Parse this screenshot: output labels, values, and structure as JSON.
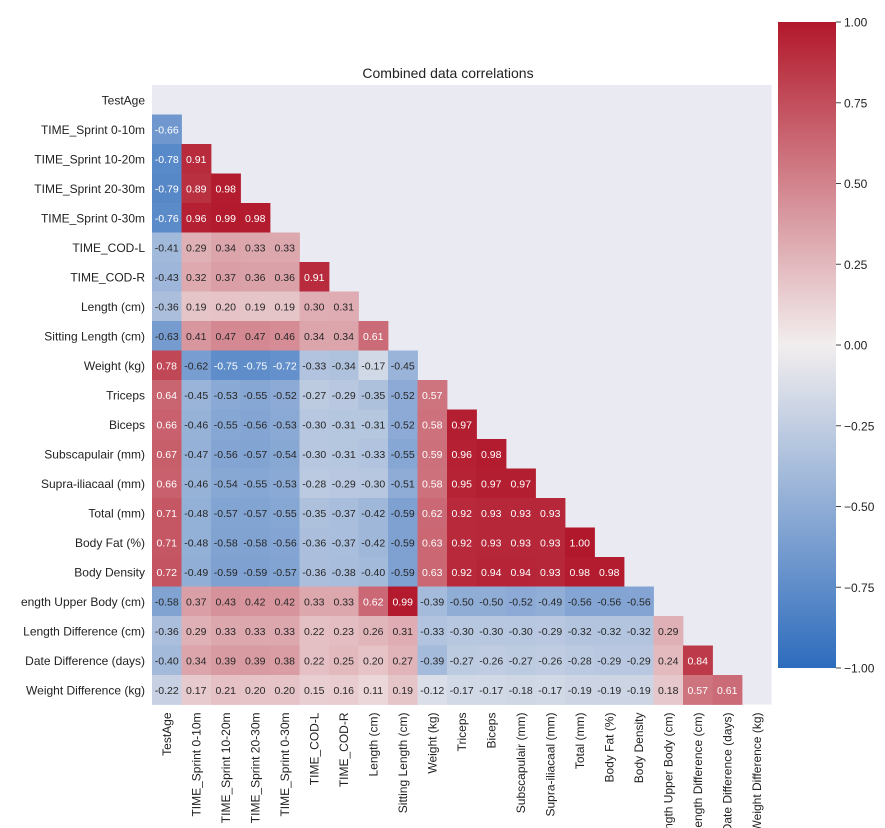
{
  "chart_data": {
    "type": "heatmap",
    "title": "Combined data correlations",
    "row_labels": [
      "TestAge",
      "TIME_Sprint 0-10m",
      "TIME_Sprint 10-20m",
      "TIME_Sprint 20-30m",
      "TIME_Sprint 0-30m",
      "TIME_COD-L",
      "TIME_COD-R",
      "Length (cm)",
      "Sitting Length (cm)",
      "Weight (kg)",
      "Triceps",
      "Biceps",
      "Subscapulair (mm)",
      "Supra-iliacaal (mm)",
      "Total (mm)",
      "Body Fat (%)",
      "Body Density",
      "Length Upper Body (cm)",
      "Length Difference (cm)",
      "Date Difference (days)",
      "Weight Difference (kg)"
    ],
    "row_labels_visible": [
      "TestAge",
      "TIME_Sprint 0-10m",
      "TIME_Sprint 10-20m",
      "TIME_Sprint 20-30m",
      "TIME_Sprint 0-30m",
      "TIME_COD-L",
      "TIME_COD-R",
      "Length (cm)",
      "Sitting Length (cm)",
      "Weight (kg)",
      "Triceps",
      "Biceps",
      "Subscapulair (mm)",
      "Supra-iliacaal (mm)",
      "Total (mm)",
      "Body Fat (%)",
      "Body Density",
      "ength Upper Body (cm)",
      "Length Difference (cm)",
      "Date Difference (days)",
      "Weight Difference (kg)"
    ],
    "col_labels_visible": [
      "TestAge",
      "TIME_Sprint 0-10m",
      "TIME_Sprint 10-20m",
      "TIME_Sprint 20-30m",
      "TIME_Sprint 0-30m",
      "TIME_COD-L",
      "TIME_COD-R",
      "Length (cm)",
      "Sitting Length (cm)",
      "Weight (kg)",
      "Triceps",
      "Biceps",
      "Subscapulair (mm)",
      "Supra-iliacaal (mm)",
      "Total (mm)",
      "Body Fat (%)",
      "Body Density",
      "ength Upper Body (cm)",
      "Length Difference (cm)",
      "Date Difference (days)",
      "Weight Difference (kg)"
    ],
    "matrix_lower": [
      [],
      [
        -0.66
      ],
      [
        -0.78,
        0.91
      ],
      [
        -0.79,
        0.89,
        0.98
      ],
      [
        -0.76,
        0.96,
        0.99,
        0.98
      ],
      [
        -0.41,
        0.29,
        0.34,
        0.33,
        0.33
      ],
      [
        -0.43,
        0.32,
        0.37,
        0.36,
        0.36,
        0.91
      ],
      [
        -0.36,
        0.19,
        0.2,
        0.19,
        0.19,
        0.3,
        0.31
      ],
      [
        -0.63,
        0.41,
        0.47,
        0.47,
        0.46,
        0.34,
        0.34,
        0.61
      ],
      [
        0.78,
        -0.62,
        -0.75,
        -0.75,
        -0.72,
        -0.33,
        -0.34,
        -0.17,
        -0.45
      ],
      [
        0.64,
        -0.45,
        -0.53,
        -0.55,
        -0.52,
        -0.27,
        -0.29,
        -0.35,
        -0.52,
        0.57
      ],
      [
        0.66,
        -0.46,
        -0.55,
        -0.56,
        -0.53,
        -0.3,
        -0.31,
        -0.31,
        -0.52,
        0.58,
        0.97
      ],
      [
        0.67,
        -0.47,
        -0.56,
        -0.57,
        -0.54,
        -0.3,
        -0.31,
        -0.33,
        -0.55,
        0.59,
        0.96,
        0.98
      ],
      [
        0.66,
        -0.46,
        -0.54,
        -0.55,
        -0.53,
        -0.28,
        -0.29,
        -0.3,
        -0.51,
        0.58,
        0.95,
        0.97,
        0.97
      ],
      [
        0.71,
        -0.48,
        -0.57,
        -0.57,
        -0.55,
        -0.35,
        -0.37,
        -0.42,
        -0.59,
        0.62,
        0.92,
        0.93,
        0.93,
        0.93
      ],
      [
        0.71,
        -0.48,
        -0.58,
        -0.58,
        -0.56,
        -0.36,
        -0.37,
        -0.42,
        -0.59,
        0.63,
        0.92,
        0.93,
        0.93,
        0.93,
        1.0
      ],
      [
        0.72,
        -0.49,
        -0.59,
        -0.59,
        -0.57,
        -0.36,
        -0.38,
        -0.4,
        -0.59,
        0.63,
        0.92,
        0.94,
        0.94,
        0.93,
        0.98,
        0.98
      ],
      [
        -0.58,
        0.37,
        0.43,
        0.42,
        0.42,
        0.33,
        0.33,
        0.62,
        0.99,
        -0.39,
        -0.5,
        -0.5,
        -0.52,
        -0.49,
        -0.56,
        -0.56,
        -0.56
      ],
      [
        -0.36,
        0.29,
        0.33,
        0.33,
        0.33,
        0.22,
        0.23,
        0.26,
        0.31,
        -0.33,
        -0.3,
        -0.3,
        -0.3,
        -0.29,
        -0.32,
        -0.32,
        -0.32,
        0.29
      ],
      [
        -0.4,
        0.34,
        0.39,
        0.39,
        0.38,
        0.22,
        0.25,
        0.2,
        0.27,
        -0.39,
        -0.27,
        -0.26,
        -0.27,
        -0.26,
        -0.28,
        -0.29,
        -0.29,
        0.24,
        0.84
      ],
      [
        -0.22,
        0.17,
        0.21,
        0.2,
        0.2,
        0.15,
        0.16,
        0.11,
        0.19,
        -0.12,
        -0.17,
        -0.17,
        -0.18,
        -0.17,
        -0.19,
        -0.19,
        -0.19,
        0.18,
        0.57,
        0.61
      ]
    ],
    "colorbar": {
      "range": [
        -1.0,
        1.0
      ],
      "ticks": [
        -1.0,
        -0.75,
        -0.5,
        -0.25,
        0.0,
        0.25,
        0.5,
        0.75,
        1.0
      ],
      "tick_labels": [
        "−1.00",
        "−0.75",
        "−0.50",
        "−0.25",
        "0.00",
        "0.25",
        "0.50",
        "0.75",
        "1.00"
      ],
      "colors": {
        "low": "#2d6cbd",
        "mid": "#f2eeee",
        "high": "#b2182b"
      }
    },
    "masked_color": "#eaeaf2",
    "grid": false
  }
}
